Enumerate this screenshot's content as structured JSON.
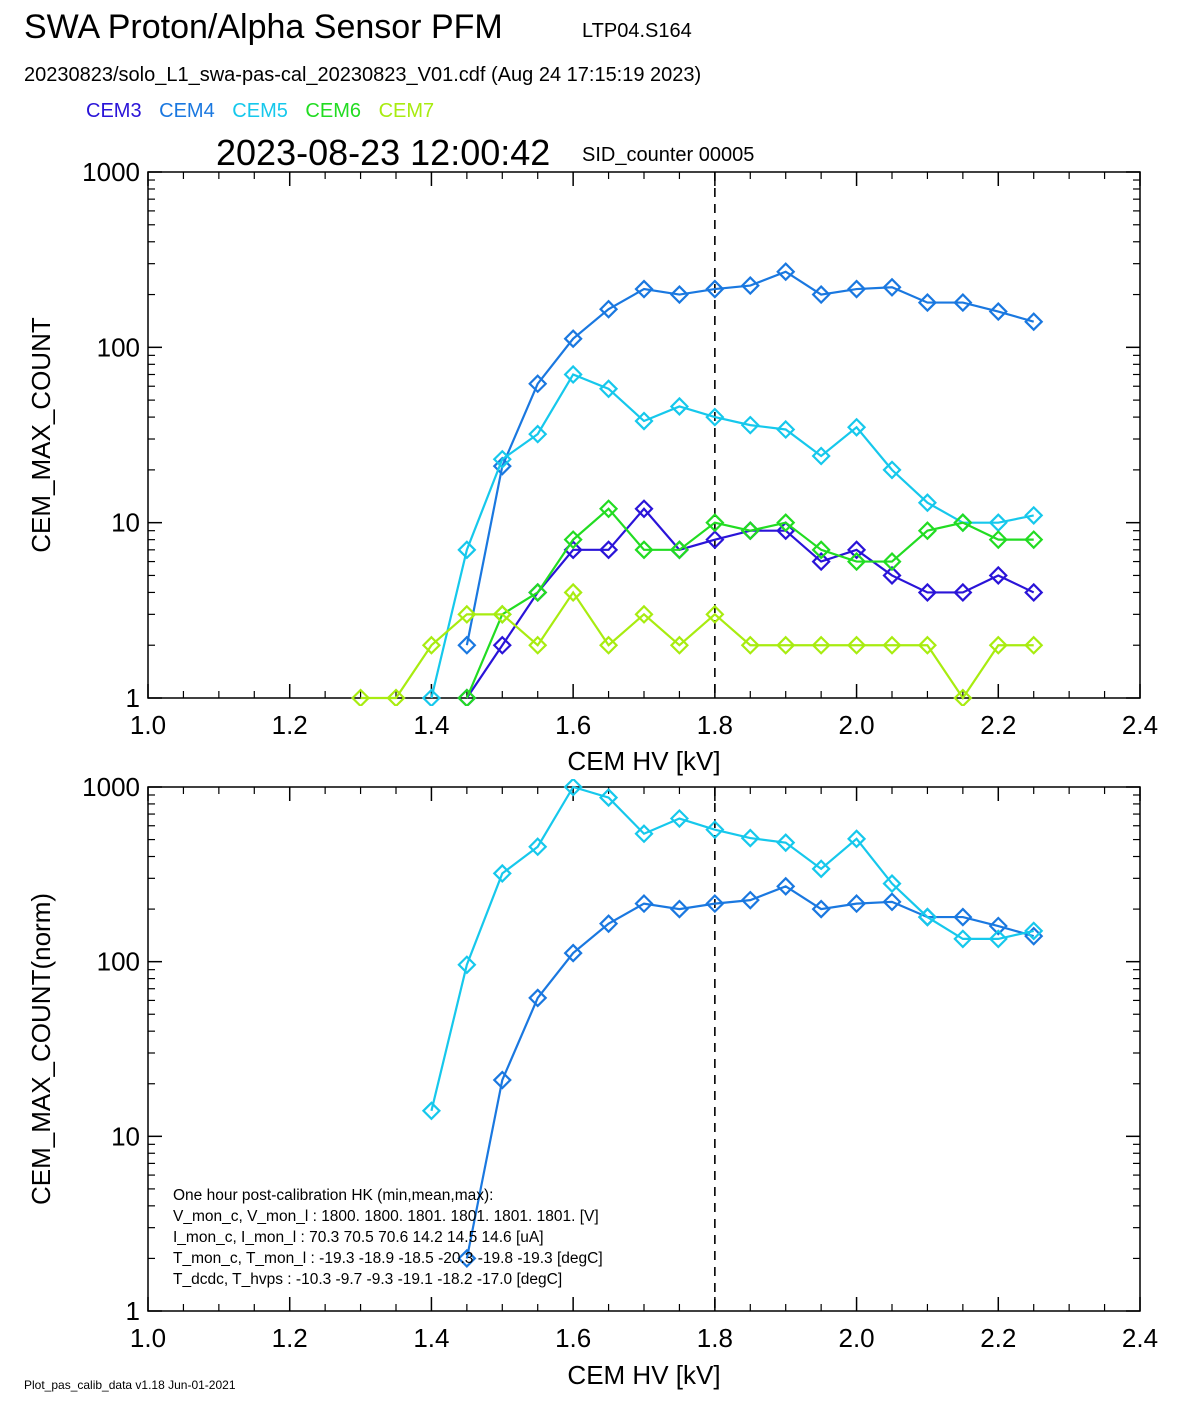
{
  "header": {
    "title": "SWA Proton/Alpha Sensor PFM",
    "subtitle": "LTP04.S164",
    "file_line": "20230823/solo_L1_swa-pas-cal_20230823_V01.cdf  (Aug 24 17:15:19 2023)",
    "timestamp": "2023-08-23 12:00:42",
    "sid": "SID_counter 00005"
  },
  "legend": [
    {
      "label": "CEM3",
      "color": "#2a14d8"
    },
    {
      "label": "CEM4",
      "color": "#1a78e0"
    },
    {
      "label": "CEM5",
      "color": "#16c8ec"
    },
    {
      "label": "CEM6",
      "color": "#22dc22"
    },
    {
      "label": "CEM7",
      "color": "#a8ec10"
    }
  ],
  "footer": "Plot_pas_calib_data v1.18 Jun-01-2021",
  "hk_text": [
    "One hour post-calibration HK (min,mean,max):",
    "V_mon_c, V_mon_l :   1800.  1800.  1801.      1801.  1801.  1801. [V]",
    "I_mon_c,  I_mon_l :     70.3   70.5   70.6         14.2   14.5   14.6  [uA]",
    "T_mon_c, T_mon_l :   -19.3  -18.9  -18.5        -20.3  -19.8  -19.3  [degC]",
    "T_dcdc,    T_hvps :     -10.3   -9.7   -9.3          -19.1  -18.2  -17.0  [degC]"
  ],
  "chart_data": [
    {
      "type": "line",
      "xlabel": "CEM HV [kV]",
      "ylabel": "CEM_MAX_COUNT",
      "xlim": [
        1.0,
        2.4
      ],
      "ylim": [
        1,
        1000
      ],
      "yscale": "log",
      "xticks": [
        "1.0",
        "1.2",
        "1.4",
        "1.6",
        "1.8",
        "2.0",
        "2.2",
        "2.4"
      ],
      "yticks": [
        "1",
        "10",
        "100",
        "1000"
      ],
      "vline_x": 1.8,
      "x": [
        1.3,
        1.35,
        1.4,
        1.45,
        1.5,
        1.55,
        1.6,
        1.65,
        1.7,
        1.75,
        1.8,
        1.85,
        1.9,
        1.95,
        2.0,
        2.05,
        2.1,
        2.15,
        2.2,
        2.25
      ],
      "series": [
        {
          "name": "CEM3",
          "color": "#2a14d8",
          "values": [
            null,
            null,
            null,
            1,
            2,
            4,
            7,
            7,
            12,
            7,
            8,
            9,
            9,
            6,
            7,
            5,
            4,
            4,
            5,
            4
          ]
        },
        {
          "name": "CEM4",
          "color": "#1a78e0",
          "values": [
            null,
            null,
            null,
            2,
            21,
            62,
            112,
            165,
            215,
            200,
            215,
            225,
            270,
            200,
            215,
            220,
            180,
            180,
            160,
            140
          ]
        },
        {
          "name": "CEM5",
          "color": "#16c8ec",
          "values": [
            null,
            null,
            1,
            7,
            23,
            32,
            70,
            58,
            38,
            46,
            40,
            36,
            34,
            24,
            35,
            20,
            13,
            10,
            10,
            11
          ]
        },
        {
          "name": "CEM6",
          "color": "#22dc22",
          "values": [
            null,
            null,
            null,
            1,
            3,
            4,
            8,
            12,
            7,
            7,
            10,
            9,
            10,
            7,
            6,
            6,
            9,
            10,
            8,
            8
          ]
        },
        {
          "name": "CEM7",
          "color": "#a8ec10",
          "values": [
            1,
            1,
            2,
            3,
            3,
            2,
            4,
            2,
            3,
            2,
            3,
            2,
            2,
            2,
            2,
            2,
            2,
            1,
            2,
            2
          ]
        }
      ]
    },
    {
      "type": "line",
      "xlabel": "CEM HV [kV]",
      "ylabel": "CEM_MAX_COUNT(norm)",
      "xlim": [
        1.0,
        2.4
      ],
      "ylim": [
        1,
        1000
      ],
      "yscale": "log",
      "xticks": [
        "1.0",
        "1.2",
        "1.4",
        "1.6",
        "1.8",
        "2.0",
        "2.2",
        "2.4"
      ],
      "yticks": [
        "1",
        "10",
        "100",
        "1000"
      ],
      "vline_x": 1.8,
      "x": [
        1.3,
        1.35,
        1.4,
        1.45,
        1.5,
        1.55,
        1.6,
        1.65,
        1.7,
        1.75,
        1.8,
        1.85,
        1.9,
        1.95,
        2.0,
        2.05,
        2.1,
        2.15,
        2.2,
        2.25
      ],
      "series": [
        {
          "name": "CEM4",
          "color": "#1a78e0",
          "values": [
            null,
            null,
            null,
            2,
            21,
            62,
            112,
            165,
            215,
            200,
            215,
            225,
            270,
            200,
            215,
            220,
            180,
            180,
            160,
            140
          ]
        },
        {
          "name": "CEM5",
          "color": "#16c8ec",
          "values": [
            null,
            null,
            14,
            96,
            320,
            455,
            1000,
            870,
            540,
            660,
            570,
            510,
            480,
            340,
            505,
            280,
            180,
            135,
            135,
            150
          ]
        }
      ]
    }
  ]
}
